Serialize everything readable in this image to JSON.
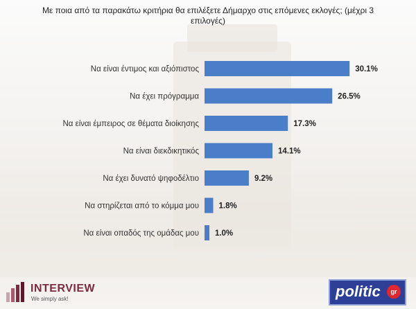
{
  "chart_data": {
    "type": "bar",
    "orientation": "horizontal",
    "title": "Με ποια από τα παρακάτω κριτήρια θα επιλέξετε Δήμαρχο στις επόμενες εκλογές; (μέχρι 3 επιλογές)",
    "categories": [
      "Να είναι έντιμος και αξιόπιστος",
      "Να έχει πρόγραμμα",
      "Να είναι έμπειρος σε θέματα διοίκησης",
      "Να είναι διεκδικητικός",
      "Να έχει δυνατό ψηφοδέλτιο",
      "Να στηρίζεται από το κόμμα μου",
      "Να είναι οπαδός της ομάδας μου"
    ],
    "values": [
      30.1,
      26.5,
      17.3,
      14.1,
      9.2,
      1.8,
      1.0
    ],
    "value_labels": [
      "30.1%",
      "26.5%",
      "17.3%",
      "14.1%",
      "9.2%",
      "1.8%",
      "1.0%"
    ],
    "unit": "%",
    "xlim": [
      0,
      32
    ],
    "bar_color": "#4a7ec8"
  },
  "logos": {
    "interview_name": "INTERVIEW",
    "interview_tagline": "We simply ask!",
    "politic_name": "politic",
    "politic_suffix": "gr"
  }
}
